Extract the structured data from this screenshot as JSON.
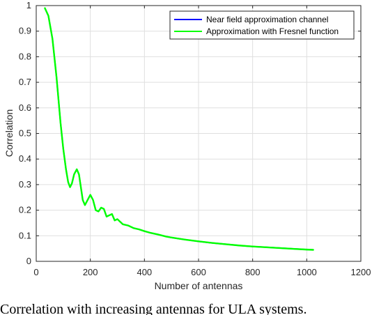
{
  "chart_data": {
    "type": "line",
    "xlabel": "Number of antennas",
    "ylabel": "Correlation",
    "xlim": [
      0,
      1200
    ],
    "ylim": [
      0,
      1
    ],
    "xticks": [
      0,
      200,
      400,
      600,
      800,
      1000,
      1200
    ],
    "yticks": [
      0,
      0.1,
      0.2,
      0.3,
      0.4,
      0.5,
      0.6,
      0.7,
      0.8,
      0.9,
      1
    ],
    "grid": true,
    "legend_position": "top-right",
    "series": [
      {
        "name": "Near field approximation channel",
        "color": "#0000ff",
        "x": [
          32,
          45,
          60,
          75,
          90,
          100,
          110,
          118,
          125,
          132,
          140,
          150,
          158,
          165,
          172,
          180,
          190,
          200,
          210,
          220,
          230,
          240,
          250,
          260,
          270,
          280,
          290,
          300,
          310,
          320,
          340,
          360,
          380,
          400,
          420,
          450,
          480,
          500,
          550,
          600,
          650,
          700,
          750,
          800,
          850,
          900,
          950,
          1000,
          1024
        ],
        "y": [
          0.99,
          0.96,
          0.87,
          0.72,
          0.54,
          0.44,
          0.36,
          0.31,
          0.29,
          0.305,
          0.34,
          0.36,
          0.34,
          0.29,
          0.24,
          0.22,
          0.24,
          0.26,
          0.24,
          0.2,
          0.195,
          0.21,
          0.205,
          0.175,
          0.18,
          0.185,
          0.16,
          0.165,
          0.155,
          0.145,
          0.14,
          0.13,
          0.125,
          0.118,
          0.112,
          0.105,
          0.097,
          0.093,
          0.085,
          0.078,
          0.072,
          0.067,
          0.062,
          0.058,
          0.055,
          0.052,
          0.049,
          0.046,
          0.045
        ]
      },
      {
        "name": "Approximation with Fresnel function",
        "color": "#00ff00",
        "x": [
          32,
          45,
          60,
          75,
          90,
          100,
          110,
          118,
          125,
          132,
          140,
          150,
          158,
          165,
          172,
          180,
          190,
          200,
          210,
          220,
          230,
          240,
          250,
          260,
          270,
          280,
          290,
          300,
          310,
          320,
          340,
          360,
          380,
          400,
          420,
          450,
          480,
          500,
          550,
          600,
          650,
          700,
          750,
          800,
          850,
          900,
          950,
          1000,
          1024
        ],
        "y": [
          0.99,
          0.96,
          0.87,
          0.72,
          0.54,
          0.44,
          0.36,
          0.31,
          0.29,
          0.305,
          0.34,
          0.36,
          0.34,
          0.29,
          0.24,
          0.22,
          0.24,
          0.26,
          0.24,
          0.2,
          0.195,
          0.21,
          0.205,
          0.175,
          0.18,
          0.185,
          0.16,
          0.165,
          0.155,
          0.145,
          0.14,
          0.13,
          0.125,
          0.118,
          0.112,
          0.105,
          0.097,
          0.093,
          0.085,
          0.078,
          0.072,
          0.067,
          0.062,
          0.058,
          0.055,
          0.052,
          0.049,
          0.046,
          0.045
        ]
      }
    ]
  },
  "caption": "Correlation with increasing antennas for ULA systems."
}
